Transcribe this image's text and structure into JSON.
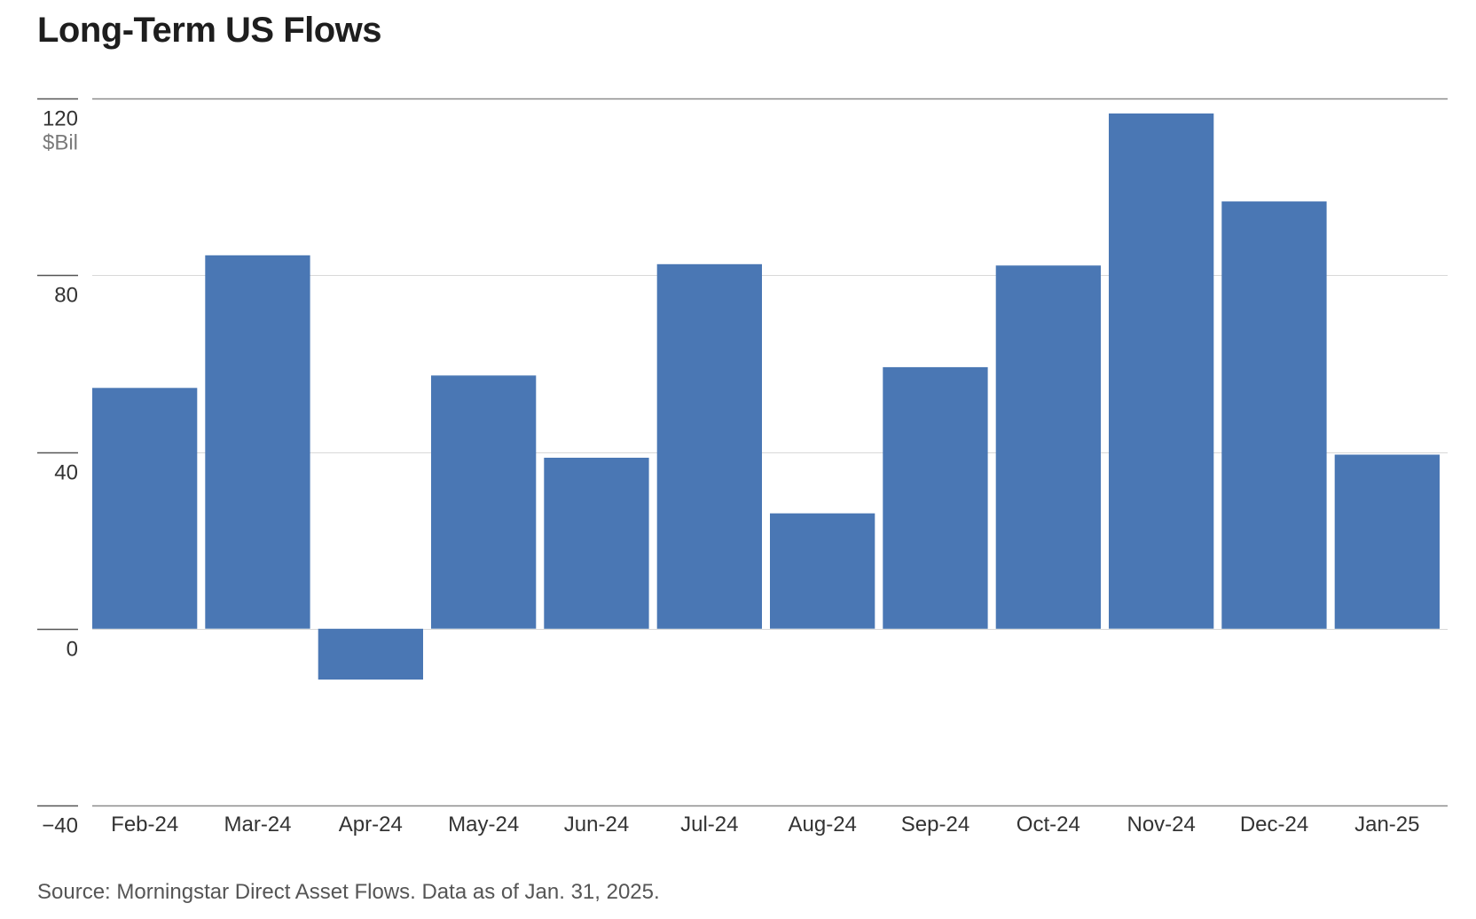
{
  "chart_data": {
    "type": "bar",
    "title": "Long-Term US Flows",
    "ylabel": "$Bil",
    "xlabel": "",
    "categories": [
      "Feb-24",
      "Mar-24",
      "Apr-24",
      "May-24",
      "Jun-24",
      "Jul-24",
      "Aug-24",
      "Sep-24",
      "Oct-24",
      "Nov-24",
      "Dec-24",
      "Jan-25"
    ],
    "values": [
      54.5,
      84.5,
      -11.5,
      57.3,
      38.7,
      82.5,
      26.1,
      59.2,
      82.2,
      116.6,
      96.7,
      39.4
    ],
    "ylim": [
      -40,
      120
    ],
    "yticks": [
      120,
      80,
      40,
      0,
      -40
    ],
    "ytick_labels": [
      "120",
      "80",
      "40",
      "0",
      "−40"
    ],
    "grid": true,
    "legend": "none",
    "bar_color": "#4a77b4"
  },
  "source": "Source: Morningstar Direct Asset Flows. Data as of Jan. 31, 2025."
}
